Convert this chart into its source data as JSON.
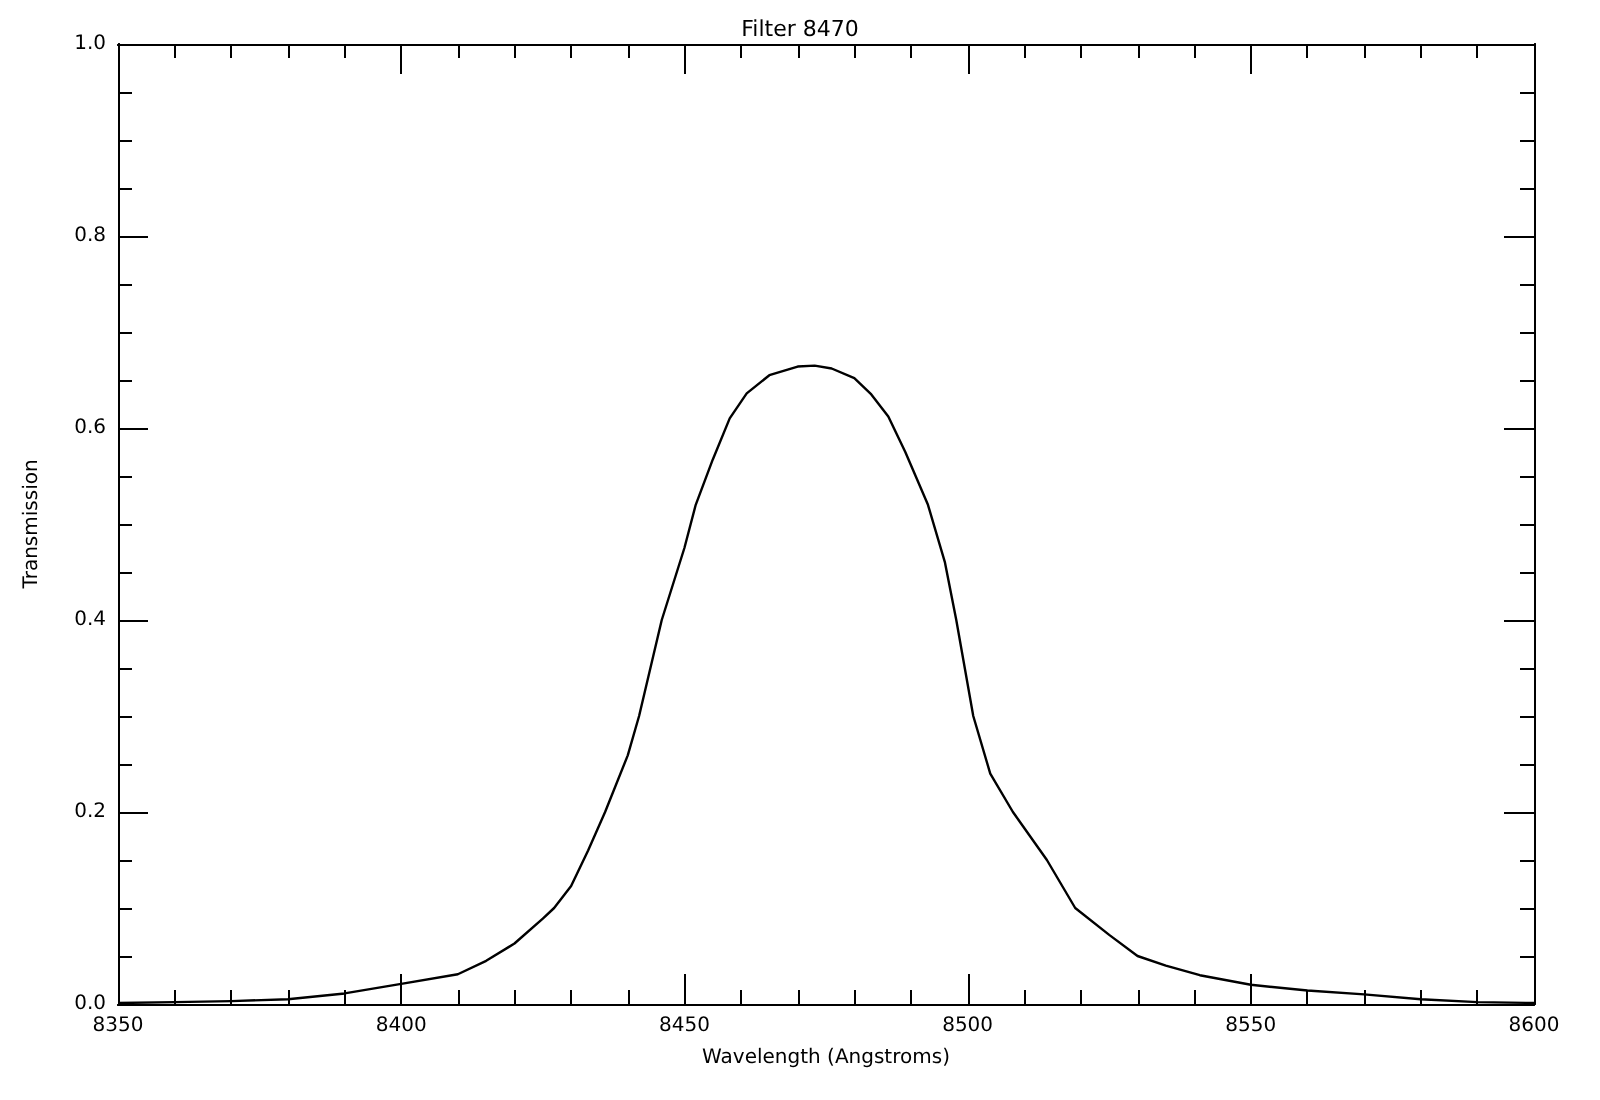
{
  "chart_data": {
    "type": "line",
    "title": "Filter 8470",
    "xlabel": "Wavelength (Angstroms)",
    "ylabel": "Transmission",
    "x": [
      8350,
      8360,
      8370,
      8380,
      8390,
      8400,
      8410,
      8415,
      8420,
      8425,
      8427,
      8430,
      8433,
      8436,
      8440,
      8442,
      8446,
      8450,
      8452,
      8455,
      8458,
      8461,
      8465,
      8470,
      8473,
      8476,
      8480,
      8483,
      8486,
      8489,
      8493,
      8496,
      8498,
      8501,
      8504,
      8508,
      8514,
      8519,
      8525,
      8530,
      8535,
      8541,
      8550,
      8560,
      8570,
      8580,
      8590,
      8600
    ],
    "series": [
      {
        "color": "#000000",
        "values": [
          0.001,
          0.002,
          0.003,
          0.005,
          0.011,
          0.021,
          0.031,
          0.045,
          0.063,
          0.089,
          0.1,
          0.123,
          0.16,
          0.2,
          0.259,
          0.3,
          0.4,
          0.475,
          0.52,
          0.567,
          0.61,
          0.636,
          0.655,
          0.664,
          0.665,
          0.662,
          0.652,
          0.635,
          0.612,
          0.575,
          0.52,
          0.46,
          0.4,
          0.3,
          0.24,
          0.2,
          0.15,
          0.1,
          0.072,
          0.05,
          0.04,
          0.03,
          0.02,
          0.014,
          0.01,
          0.005,
          0.002,
          0.001
        ]
      }
    ],
    "xlim": [
      8350,
      8600
    ],
    "xticks": [
      8350,
      {
        "value": 8360,
        "label": null
      },
      {
        "value": 8370,
        "label": null
      },
      {
        "value": 8380,
        "label": null
      },
      {
        "value": 8390,
        "label": null
      },
      8400,
      {
        "value": 8410,
        "label": null
      },
      {
        "value": 8420,
        "label": null
      },
      {
        "value": 8430,
        "label": null
      },
      {
        "value": 8440,
        "label": null
      },
      8450,
      {
        "value": 8460,
        "label": null
      },
      {
        "value": 8470,
        "label": null
      },
      {
        "value": 8480,
        "label": null
      },
      {
        "value": 8490,
        "label": null
      },
      8500,
      {
        "value": 8510,
        "label": null
      },
      {
        "value": 8520,
        "label": null
      },
      {
        "value": 8530,
        "label": null
      },
      {
        "value": 8540,
        "label": null
      },
      8550,
      {
        "value": 8560,
        "label": null
      },
      {
        "value": 8570,
        "label": null
      },
      {
        "value": 8580,
        "label": null
      },
      {
        "value": 8590,
        "label": null
      },
      8600
    ],
    "ylim": [
      0,
      1
    ],
    "yticks": [
      {
        "value": 0,
        "label": "0.0"
      },
      {
        "value": 0.05,
        "label": null
      },
      {
        "value": 0.1,
        "label": null
      },
      {
        "value": 0.15,
        "label": null
      },
      {
        "value": 0.2,
        "label": "0.2"
      },
      {
        "value": 0.25,
        "label": null
      },
      {
        "value": 0.3,
        "label": null
      },
      {
        "value": 0.35,
        "label": null
      },
      {
        "value": 0.4,
        "label": "0.4"
      },
      {
        "value": 0.45,
        "label": null
      },
      {
        "value": 0.5,
        "label": null
      },
      {
        "value": 0.55,
        "label": null
      },
      {
        "value": 0.6,
        "label": "0.6"
      },
      {
        "value": 0.65,
        "label": null
      },
      {
        "value": 0.7,
        "label": null
      },
      {
        "value": 0.75,
        "label": null
      },
      {
        "value": 0.8,
        "label": "0.8"
      },
      {
        "value": 0.85,
        "label": null
      },
      {
        "value": 0.9,
        "label": null
      },
      {
        "value": 0.95,
        "label": null
      },
      {
        "value": 1,
        "label": "1.0"
      }
    ],
    "grid": false,
    "marker": "none",
    "line_style": "solid"
  }
}
